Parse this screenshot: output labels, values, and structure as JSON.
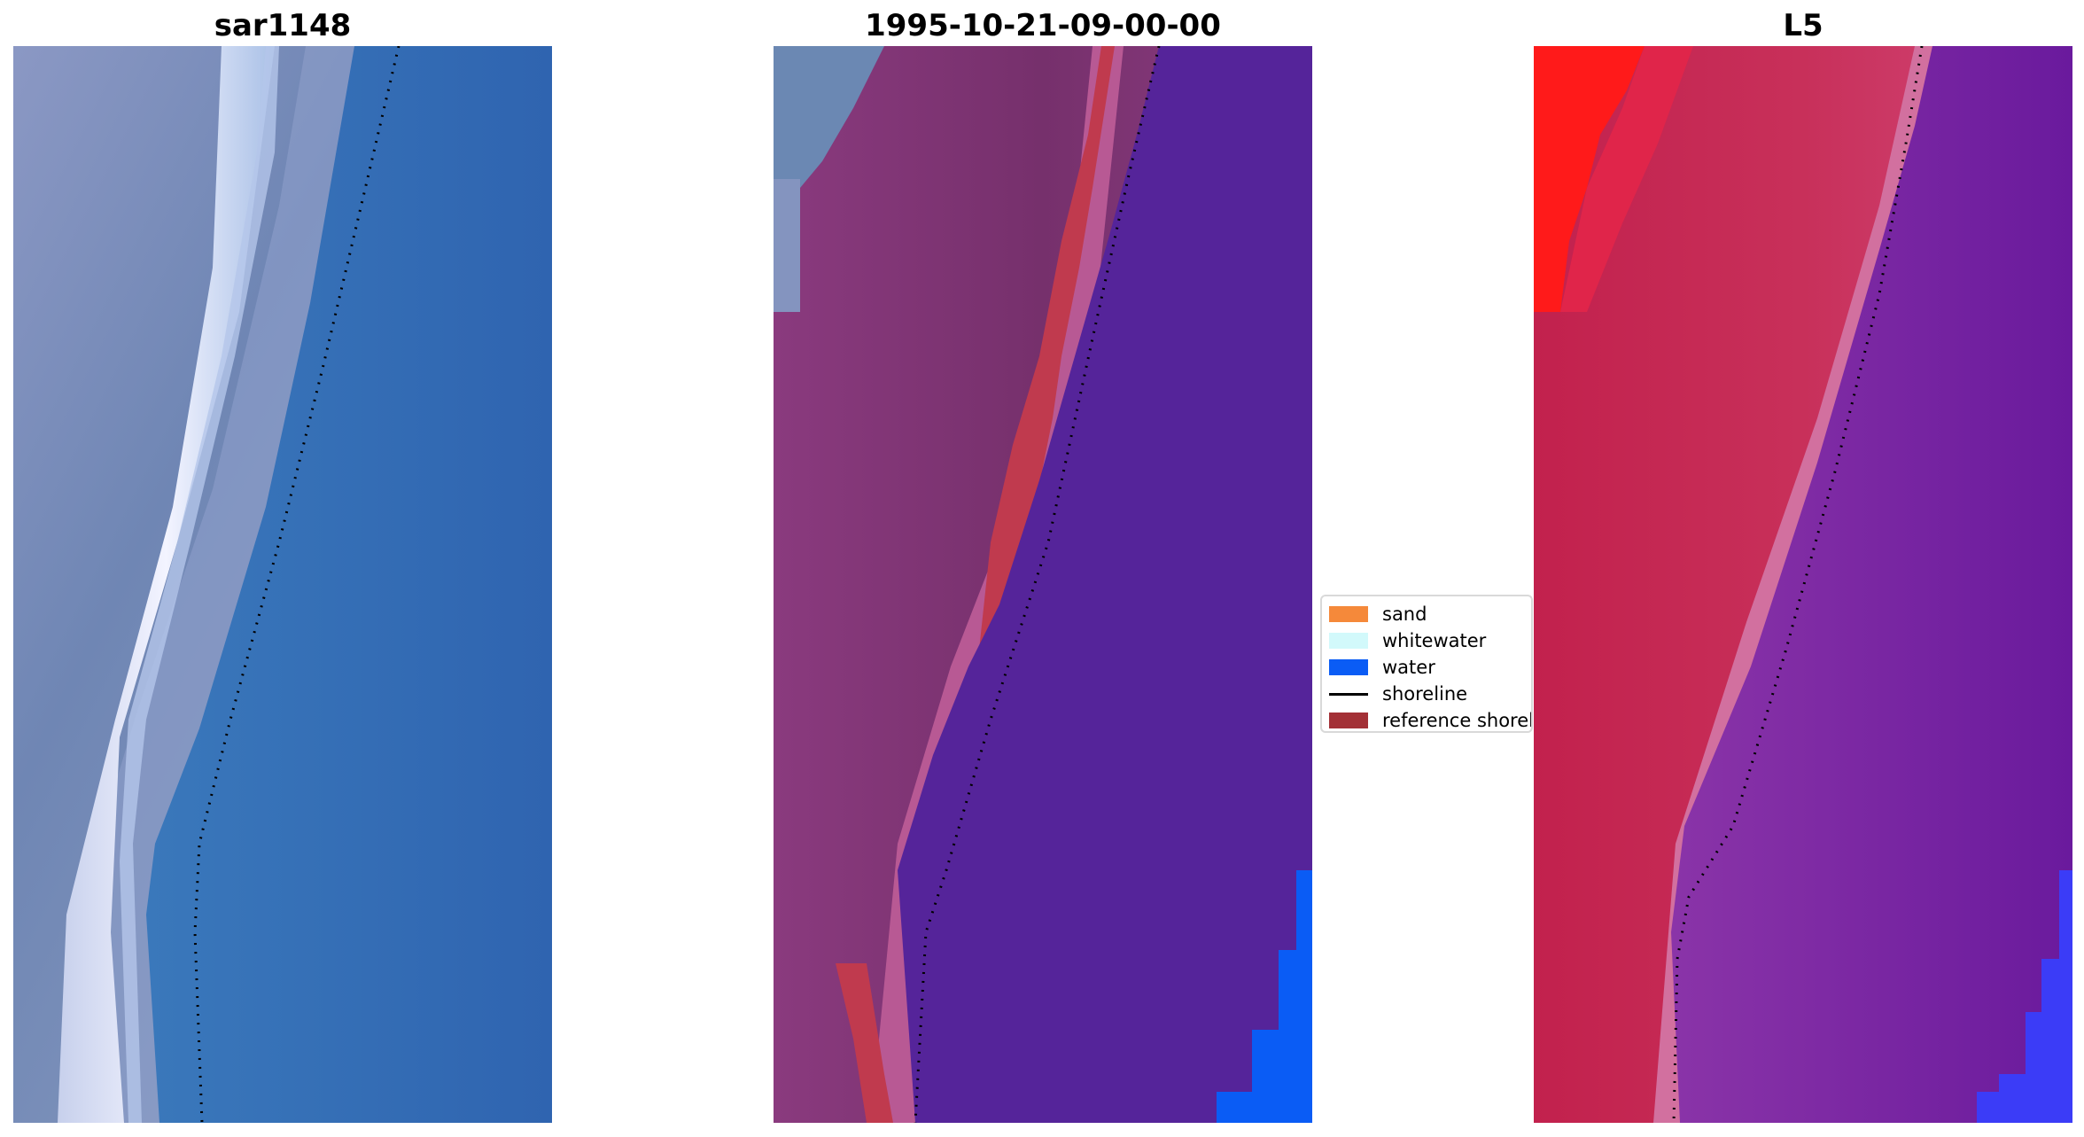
{
  "panels": [
    {
      "title": "sar1148"
    },
    {
      "title": "1995-10-21-09-00-00"
    },
    {
      "title": "L5"
    }
  ],
  "legend": {
    "placement": "center",
    "items": [
      {
        "label": "sand",
        "color": "#f5893a",
        "kind": "patch"
      },
      {
        "label": "whitewater",
        "color": "#d2f9fb",
        "kind": "patch"
      },
      {
        "label": "water",
        "color": "#0a5cf5",
        "kind": "patch"
      },
      {
        "label": "shoreline",
        "color": "#000000",
        "kind": "line"
      },
      {
        "label": "reference shoreline",
        "color": "#a33036",
        "kind": "patch"
      }
    ]
  },
  "colors": {
    "sar_land": "#7f93bb",
    "sar_water": "#356fb3",
    "sar_whitewater": "#eef0fb",
    "class_land": "#7c3470",
    "class_beach": "#b85994",
    "class_water": "#55249a",
    "class_reference": "#c03a4e",
    "class_water_patch": "#0a5cf5",
    "index_land": "#c21e48",
    "index_land_bright": "#ff1a1a",
    "index_water": "#6f1ea0",
    "index_water_patch": "#3b3cf7",
    "shoreline": "#000000"
  }
}
